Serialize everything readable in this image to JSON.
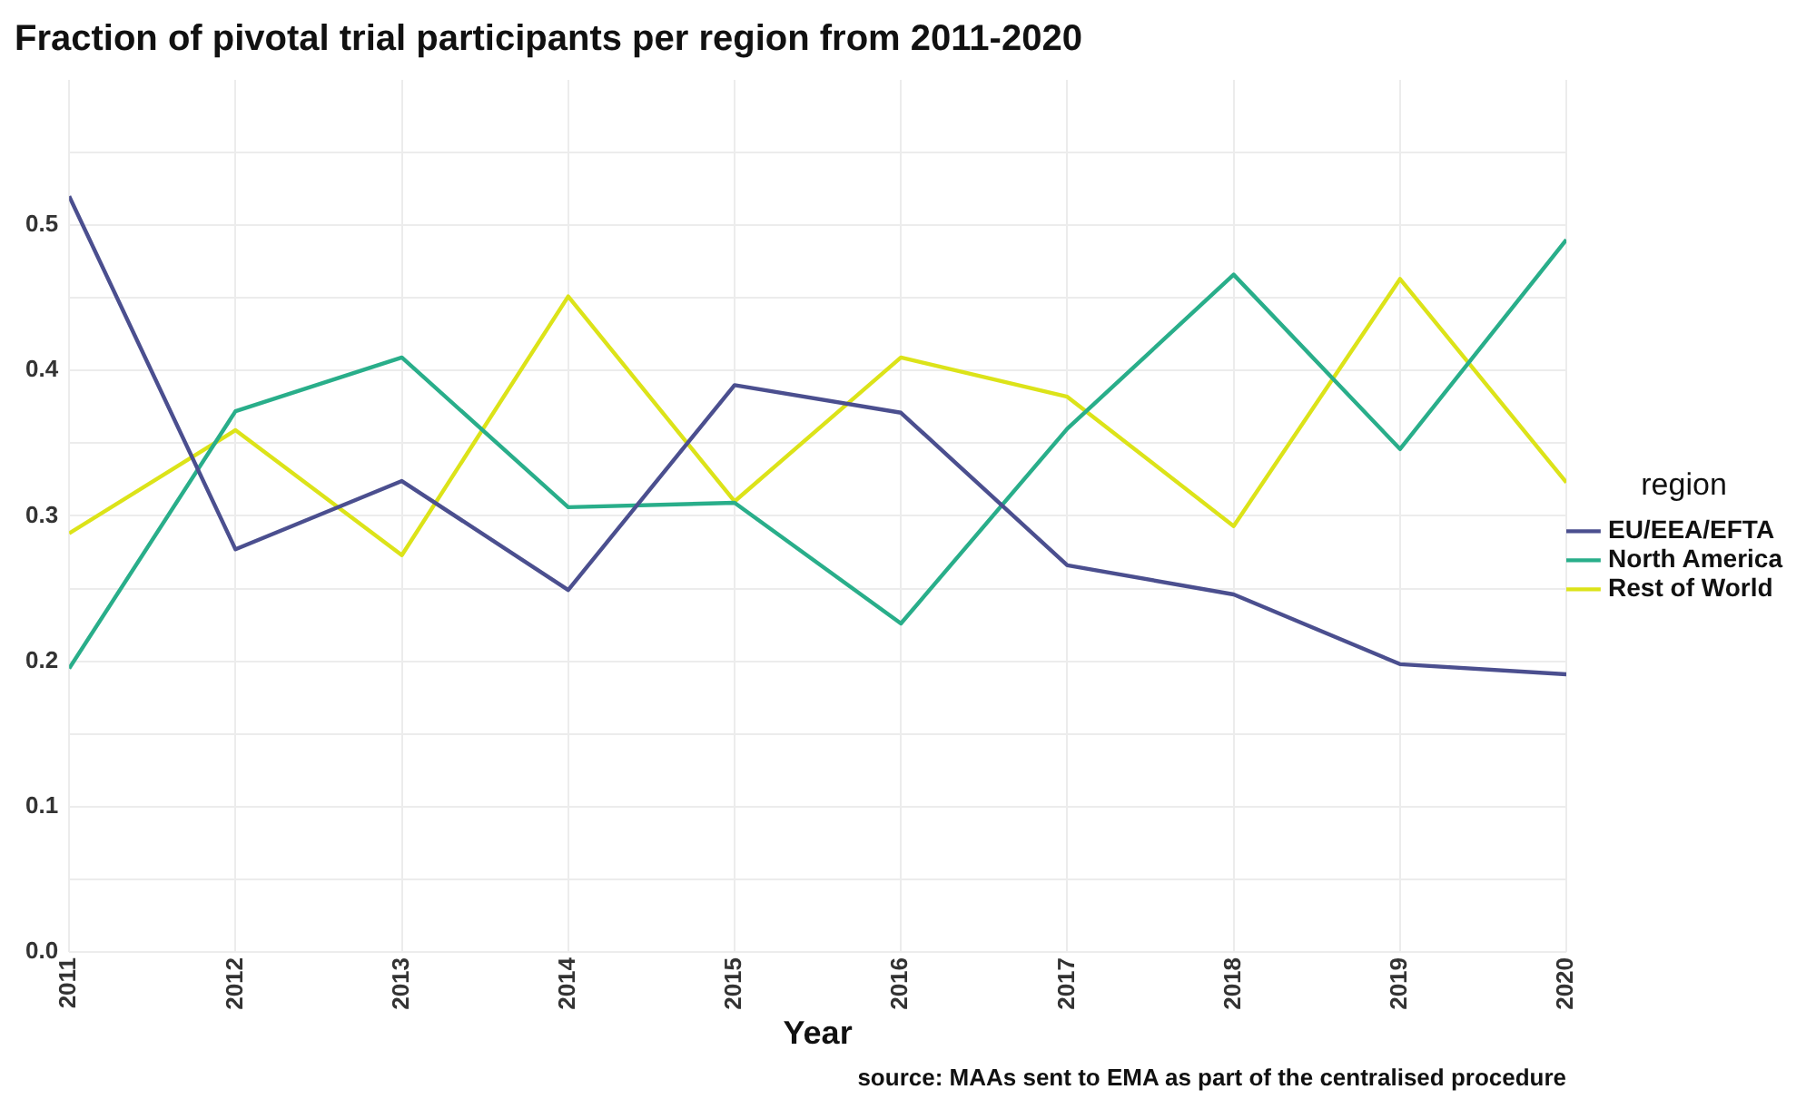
{
  "chart_data": {
    "type": "line",
    "title": "Fraction of pivotal trial participants per region from 2011-2020",
    "xlabel": "Year",
    "legend_title": "region",
    "legend": "right",
    "grid": true,
    "marker": "none",
    "line_style": "solid",
    "x": [
      2011,
      2012,
      2013,
      2014,
      2015,
      2016,
      2017,
      2018,
      2019,
      2020
    ],
    "xlim": [
      2011,
      2020
    ],
    "xticks": [
      2011,
      2012,
      2013,
      2014,
      2015,
      2016,
      2017,
      2018,
      2019,
      2020
    ],
    "ylim": [
      0,
      0.6
    ],
    "yticks": [
      {
        "value": 0,
        "label": "0.0"
      },
      {
        "value": 0.05,
        "label": null
      },
      0.1,
      {
        "value": 0.15,
        "label": null
      },
      0.2,
      {
        "value": 0.25,
        "label": null
      },
      0.3,
      {
        "value": 0.35,
        "label": null
      },
      0.4,
      {
        "value": 0.45,
        "label": null
      },
      0.5,
      {
        "value": 0.55,
        "label": null
      }
    ],
    "series": [
      {
        "name": "EU/EEA/EFTA",
        "color": "#4b4f8f",
        "values": [
          0.52,
          0.277,
          0.324,
          0.249,
          0.39,
          0.371,
          0.266,
          0.246,
          0.198,
          0.191
        ]
      },
      {
        "name": "North America",
        "color": "#29ae8a",
        "values": [
          0.195,
          0.372,
          0.409,
          0.306,
          0.309,
          0.226,
          0.36,
          0.466,
          0.346,
          0.49
        ]
      },
      {
        "name": "Rest of World",
        "color": "#dce319",
        "values": [
          0.288,
          0.359,
          0.273,
          0.451,
          0.31,
          0.409,
          0.382,
          0.293,
          0.463,
          0.323
        ]
      }
    ],
    "annotations": [
      "source: MAAs sent to EMA as part of the centralised procedure"
    ]
  }
}
